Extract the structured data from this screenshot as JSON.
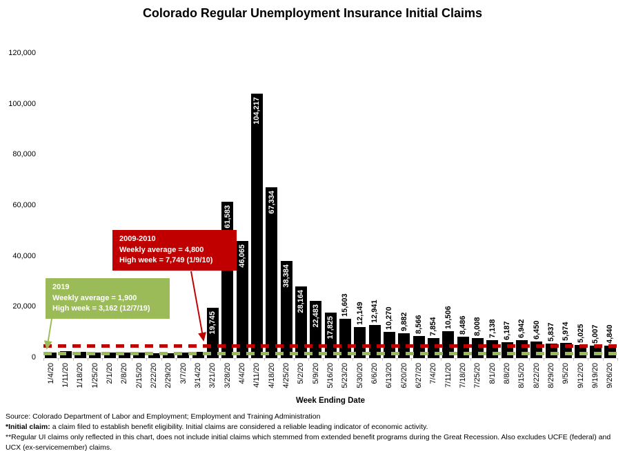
{
  "page": {
    "background": "#ffffff"
  },
  "chart_data": {
    "type": "bar",
    "title": "Colorado Regular Unemployment Insurance Initial Claims",
    "xlabel": "Week Ending Date",
    "ylabel": "",
    "ylim": [
      0,
      120000
    ],
    "yticks": [
      0,
      20000,
      40000,
      60000,
      80000,
      100000,
      120000
    ],
    "ytick_labels": [
      "0",
      "20,000",
      "40,000",
      "60,000",
      "80,000",
      "100,000",
      "120,000"
    ],
    "grid": false,
    "legend": "none",
    "bar_color": "#000000",
    "categories": [
      "1/4/20",
      "1/11/20",
      "1/18/20",
      "1/25/20",
      "2/1/20",
      "2/8/20",
      "2/15/20",
      "2/22/20",
      "2/29/20",
      "3/7/20",
      "3/14/20",
      "3/21/20",
      "3/28/20",
      "4/4/20",
      "4/11/20",
      "4/18/20",
      "4/25/20",
      "5/2/20",
      "5/9/20",
      "5/16/20",
      "5/23/20",
      "5/30/20",
      "6/6/20",
      "6/13/20",
      "6/20/20",
      "6/27/20",
      "7/4/20",
      "7/11/20",
      "7/18/20",
      "7/25/20",
      "8/1/20",
      "8/8/20",
      "8/15/20",
      "8/22/20",
      "8/29/20",
      "9/5/20",
      "9/12/20",
      "9/19/20",
      "9/26/20"
    ],
    "values": [
      2300,
      2800,
      2400,
      2200,
      2100,
      2200,
      2100,
      2000,
      2000,
      2100,
      2400,
      19745,
      61583,
      46065,
      104217,
      67334,
      38384,
      28164,
      22483,
      17825,
      15603,
      12149,
      12941,
      10270,
      9882,
      8566,
      7854,
      10506,
      8486,
      8008,
      7138,
      6187,
      6942,
      6450,
      5837,
      5974,
      5025,
      5007,
      4840
    ],
    "bar_labels": [
      "",
      "",
      "",
      "",
      "",
      "",
      "",
      "",
      "",
      "",
      "",
      "19,745",
      "61,583",
      "46,065",
      "104,217",
      "67,334",
      "38,384",
      "28,164",
      "22,483",
      "17,825",
      "15,603",
      "12,149",
      "12,941",
      "10,270",
      "9,882",
      "8,566",
      "7,854",
      "10,506",
      "8,486",
      "8,008",
      "7,138",
      "6,187",
      "6,942",
      "6,450",
      "5,837",
      "5,974",
      "5,025",
      "5,007",
      "4,840"
    ],
    "label_inside_threshold": 17000,
    "reference_lines": [
      {
        "name": "2009-2010-weekly-average",
        "value": 4800,
        "color": "#C00000",
        "style": "dashed"
      },
      {
        "name": "2019-weekly-average",
        "value": 1900,
        "color": "#9BBB59",
        "style": "dashed"
      }
    ],
    "annotations": [
      {
        "id": "2009-2010",
        "color": "#C00000",
        "text_color": "#ffffff",
        "lines": [
          "2009-2010",
          "Weekly average = 4,800",
          "High week = 7,749 (1/9/10)"
        ]
      },
      {
        "id": "2019",
        "color": "#9BBB59",
        "text_color": "#ffffff",
        "lines": [
          "2019",
          "Weekly average = 1,900",
          "High week = 3,162 (12/7/19)"
        ]
      }
    ]
  },
  "footer": {
    "source": "Source: Colorado Department of Labor and Employment; Employment and Training Administration",
    "note1_bold": "*Initial claim:",
    "note1_rest": " a claim filed to establish benefit eligibility. Initial claims are considered a reliable leading indicator of economic activity.",
    "note2": "**Regular UI claims only reflected in this chart, does not include initial claims which stemmed from extended benefit programs during the Great Recession. Also excludes UCFE (federal) and UCX (ex-servicemember) claims."
  }
}
